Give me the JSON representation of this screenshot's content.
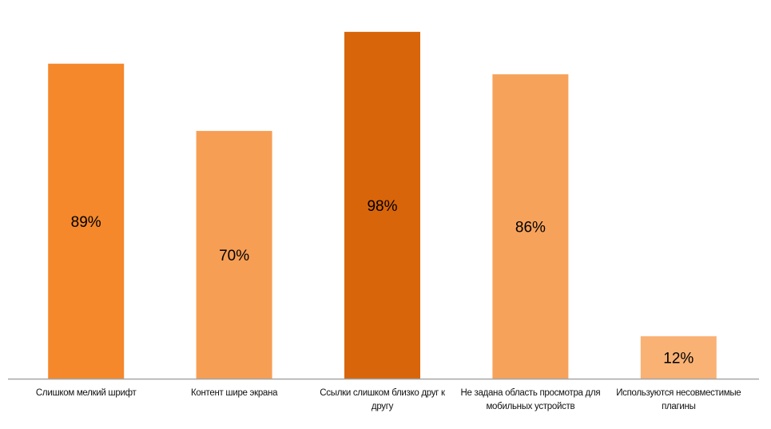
{
  "chart_data": {
    "type": "bar",
    "title": "",
    "xlabel": "",
    "ylabel": "",
    "ylim": [
      0,
      100
    ],
    "grid": false,
    "categories": [
      "Слишком мелкий шрифт",
      "Контент шире экрана",
      "Ссылки слишком близко друг к другу",
      "Не задана область просмотра для мобильных устройств",
      "Используются несовместимые плагины"
    ],
    "values": [
      89,
      70,
      98,
      86,
      12
    ],
    "data_labels": [
      "89%",
      "70%",
      "98%",
      "86%",
      "12%"
    ],
    "colors": [
      "#F5882B",
      "#F79E55",
      "#D9650A",
      "#F7A25B",
      "#F9B274"
    ],
    "axis_color": "#A6A6A6"
  }
}
